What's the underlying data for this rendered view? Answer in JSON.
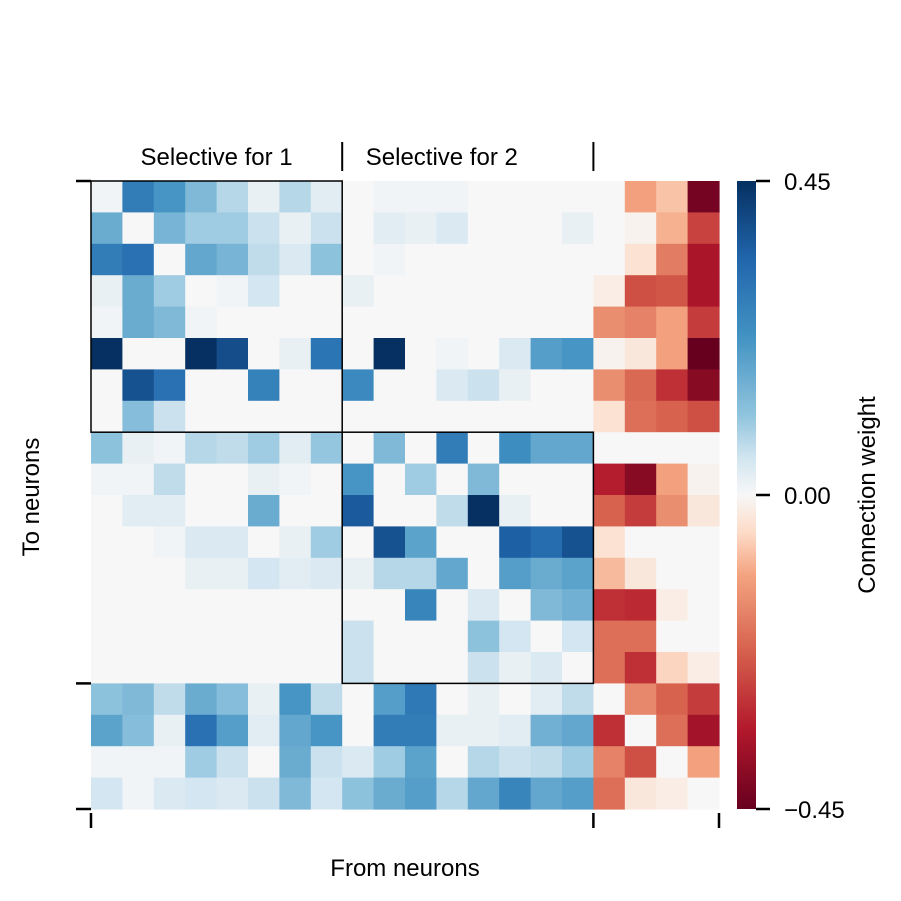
{
  "chart_data": {
    "type": "heatmap",
    "n_rows": 20,
    "n_cols": 20,
    "xlabel": "From neurons",
    "ylabel": "To neurons",
    "group_labels": [
      "Selective for 1",
      "Selective for 2"
    ],
    "group_ranges": [
      [
        0,
        8
      ],
      [
        8,
        16
      ]
    ],
    "colorbar": {
      "label": "Connection weight",
      "vmin": -0.45,
      "vmax": 0.45,
      "ticks": [
        {
          "value": 0.45,
          "label": "0.45"
        },
        {
          "value": 0.0,
          "label": "0.00"
        },
        {
          "value": -0.45,
          "label": "−0.45"
        }
      ]
    },
    "matrix": [
      [
        0.01,
        0.28,
        0.22,
        0.14,
        0.08,
        0.02,
        0.08,
        0.03,
        0.0,
        0.01,
        0.01,
        0.01,
        0.0,
        0.0,
        0.0,
        0.0,
        0.0,
        -0.12,
        -0.08,
        -0.43
      ],
      [
        0.17,
        0.0,
        0.15,
        0.1,
        0.1,
        0.06,
        0.02,
        0.06,
        0.0,
        0.03,
        0.02,
        0.04,
        0.0,
        0.0,
        0.0,
        0.02,
        0.0,
        -0.01,
        -0.1,
        -0.27
      ],
      [
        0.28,
        0.31,
        0.0,
        0.18,
        0.15,
        0.07,
        0.04,
        0.12,
        0.0,
        0.01,
        0.0,
        0.0,
        0.0,
        0.0,
        0.0,
        0.0,
        0.0,
        -0.04,
        -0.18,
        -0.35
      ],
      [
        0.02,
        0.17,
        0.1,
        0.0,
        0.01,
        0.05,
        0.0,
        0.0,
        0.02,
        0.0,
        0.0,
        0.0,
        0.0,
        0.0,
        0.0,
        0.0,
        -0.02,
        -0.25,
        -0.24,
        -0.35
      ],
      [
        0.01,
        0.17,
        0.14,
        0.01,
        0.0,
        0.0,
        0.0,
        0.0,
        0.0,
        0.0,
        0.0,
        0.0,
        0.0,
        0.0,
        0.0,
        0.0,
        -0.15,
        -0.17,
        -0.12,
        -0.28
      ],
      [
        0.45,
        0.0,
        0.0,
        0.45,
        0.39,
        0.0,
        0.02,
        0.3,
        0.0,
        0.45,
        0.0,
        0.01,
        0.0,
        0.04,
        0.2,
        0.22,
        -0.01,
        -0.03,
        -0.12,
        -0.45
      ],
      [
        0.0,
        0.38,
        0.31,
        0.0,
        0.0,
        0.27,
        0.0,
        0.0,
        0.25,
        0.0,
        0.0,
        0.04,
        0.06,
        0.02,
        0.0,
        0.0,
        -0.15,
        -0.21,
        -0.3,
        -0.4
      ],
      [
        0.0,
        0.13,
        0.06,
        0.0,
        0.0,
        0.0,
        0.0,
        0.0,
        0.0,
        0.0,
        0.0,
        0.0,
        0.0,
        0.0,
        0.0,
        0.0,
        -0.04,
        -0.2,
        -0.22,
        -0.25
      ],
      [
        0.12,
        0.02,
        0.01,
        0.08,
        0.07,
        0.1,
        0.03,
        0.11,
        0.0,
        0.14,
        0.0,
        0.28,
        0.0,
        0.24,
        0.18,
        0.18,
        0.0,
        0.0,
        0.0,
        0.0
      ],
      [
        0.01,
        0.01,
        0.07,
        0.0,
        0.0,
        0.02,
        0.01,
        0.0,
        0.22,
        0.0,
        0.1,
        0.0,
        0.14,
        0.0,
        0.0,
        0.0,
        -0.33,
        -0.4,
        -0.12,
        -0.01
      ],
      [
        0.0,
        0.03,
        0.03,
        0.0,
        0.0,
        0.17,
        0.0,
        0.0,
        0.36,
        0.0,
        0.0,
        0.07,
        0.45,
        0.02,
        0.0,
        0.0,
        -0.22,
        -0.28,
        -0.15,
        -0.03
      ],
      [
        0.0,
        0.0,
        0.01,
        0.04,
        0.04,
        0.0,
        0.02,
        0.1,
        0.0,
        0.38,
        0.19,
        0.0,
        0.0,
        0.35,
        0.32,
        0.38,
        -0.04,
        0.0,
        0.0,
        0.0
      ],
      [
        0.0,
        0.0,
        0.0,
        0.02,
        0.02,
        0.05,
        0.03,
        0.04,
        0.02,
        0.08,
        0.08,
        0.18,
        0.0,
        0.2,
        0.17,
        0.19,
        -0.09,
        -0.03,
        0.0,
        0.0
      ],
      [
        0.0,
        0.0,
        0.0,
        0.0,
        0.0,
        0.0,
        0.0,
        0.0,
        0.0,
        0.0,
        0.26,
        0.0,
        0.04,
        0.0,
        0.14,
        0.16,
        -0.3,
        -0.31,
        -0.02,
        0.0
      ],
      [
        0.0,
        0.0,
        0.0,
        0.0,
        0.0,
        0.0,
        0.0,
        0.0,
        0.06,
        0.0,
        0.0,
        0.0,
        0.12,
        0.05,
        0.0,
        0.05,
        -0.2,
        -0.2,
        0.0,
        0.0
      ],
      [
        0.0,
        0.0,
        0.0,
        0.0,
        0.0,
        0.0,
        0.0,
        0.0,
        0.06,
        0.0,
        0.0,
        0.0,
        0.06,
        0.02,
        0.04,
        0.0,
        -0.2,
        -0.3,
        -0.06,
        -0.02
      ],
      [
        0.12,
        0.14,
        0.07,
        0.17,
        0.13,
        0.02,
        0.22,
        0.07,
        0.0,
        0.2,
        0.29,
        0.0,
        0.02,
        0.0,
        0.03,
        0.07,
        0.0,
        -0.16,
        -0.22,
        -0.28
      ],
      [
        0.19,
        0.13,
        0.02,
        0.31,
        0.2,
        0.03,
        0.18,
        0.22,
        0.0,
        0.28,
        0.28,
        0.02,
        0.02,
        0.03,
        0.16,
        0.18,
        -0.3,
        0.0,
        -0.2,
        -0.36
      ],
      [
        0.01,
        0.01,
        0.01,
        0.1,
        0.06,
        0.0,
        0.17,
        0.06,
        0.04,
        0.1,
        0.19,
        0.0,
        0.08,
        0.06,
        0.07,
        0.1,
        -0.17,
        -0.25,
        0.0,
        -0.12
      ],
      [
        0.05,
        0.01,
        0.04,
        0.05,
        0.04,
        0.06,
        0.14,
        0.05,
        0.12,
        0.17,
        0.2,
        0.08,
        0.18,
        0.26,
        0.18,
        0.2,
        -0.2,
        -0.03,
        -0.02,
        0.0
      ]
    ]
  }
}
